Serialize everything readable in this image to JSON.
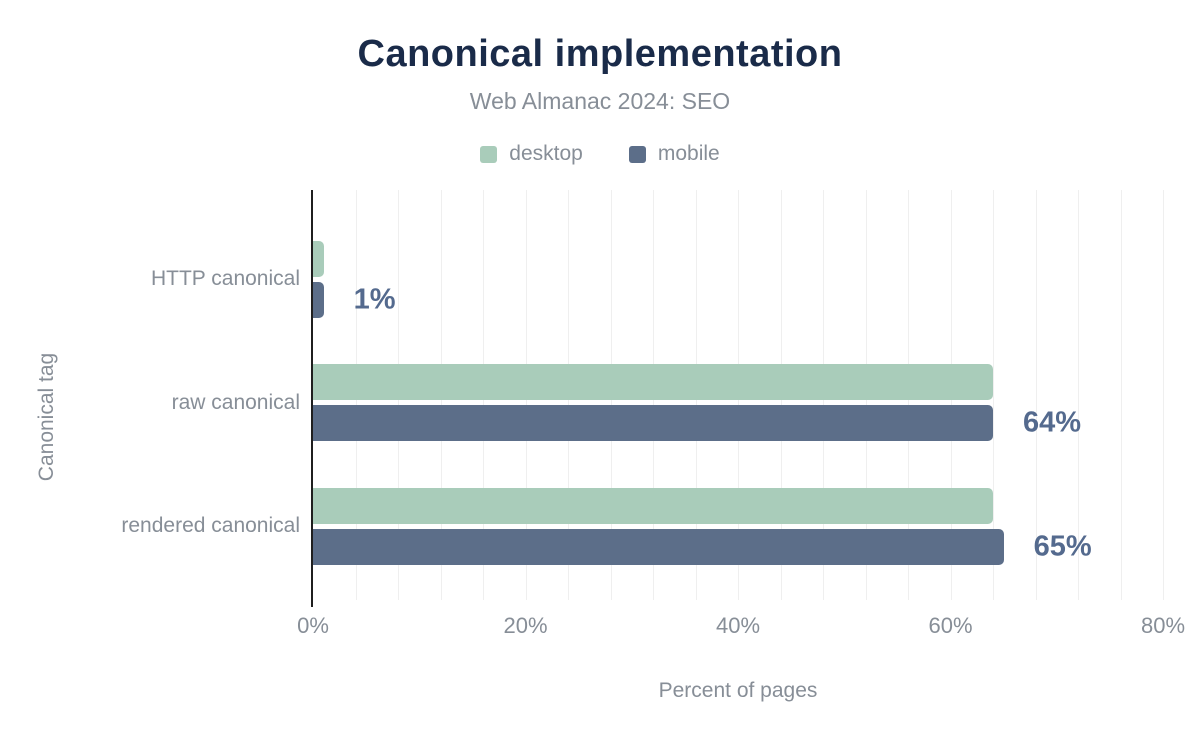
{
  "header": {
    "title": "Canonical implementation",
    "subtitle": "Web Almanac 2024: SEO"
  },
  "chart_data": {
    "type": "bar",
    "orientation": "horizontal",
    "title": "Canonical implementation",
    "subtitle": "Web Almanac 2024: SEO",
    "categories": [
      "HTTP canonical",
      "raw canonical",
      "rendered canonical"
    ],
    "series": [
      {
        "name": "desktop",
        "color": "#a9ccba",
        "values": [
          1,
          64,
          64
        ]
      },
      {
        "name": "mobile",
        "color": "#5c6e89",
        "values": [
          1,
          64,
          65
        ]
      }
    ],
    "group_value_labels": [
      "1%",
      "64%",
      "65%"
    ],
    "xlabel": "Percent of pages",
    "ylabel": "Canonical tag",
    "xlim": [
      0,
      80
    ],
    "xticks": [
      0,
      20,
      40,
      60,
      80
    ],
    "xtick_labels": [
      "0%",
      "20%",
      "40%",
      "60%",
      "80%"
    ],
    "minor_grid_step_pct": 4,
    "grid": "vertical-minor",
    "legend_position": "top"
  },
  "colors": {
    "title": "#1a2b49",
    "text_muted": "#878e97",
    "value_label": "#546a8e",
    "axis_line": "#1f1f1f",
    "gridline": "#efefef",
    "background": "#ffffff"
  }
}
